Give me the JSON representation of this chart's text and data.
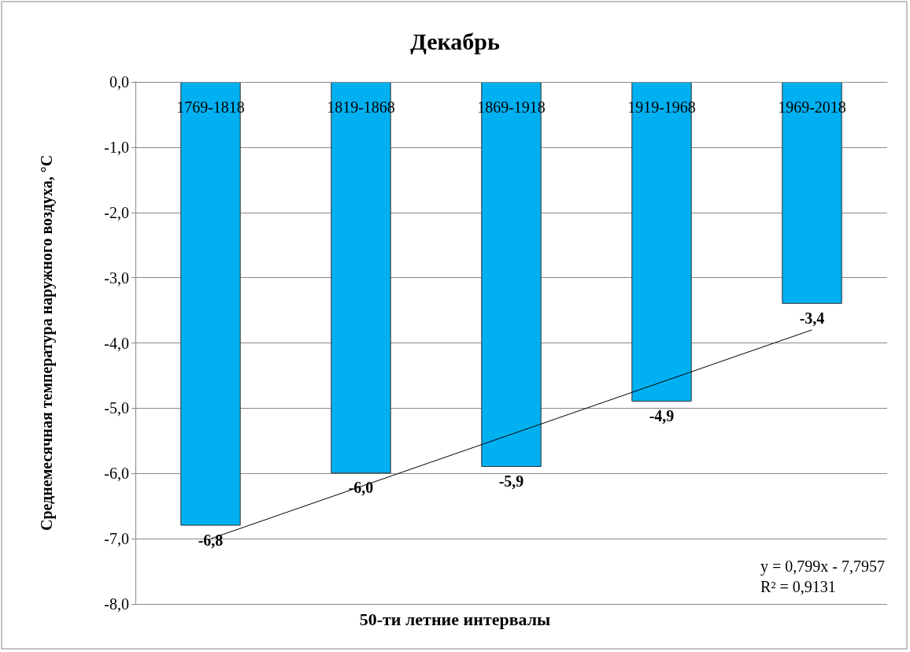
{
  "chart_data": {
    "type": "bar",
    "title": "Декабрь",
    "xlabel": "50-ти летние интервалы",
    "ylabel": "Среднемесячная температура наружного воздуха, °С",
    "categories": [
      "1769-1818",
      "1819-1868",
      "1869-1918",
      "1919-1968",
      "1969-2018"
    ],
    "series": [
      {
        "color": "#00b0f0",
        "values": [
          -6.8,
          -6.0,
          -5.9,
          -4.9,
          -3.4
        ],
        "value_labels": [
          "-6,8",
          "-6,0",
          "-5,9",
          "-4,9",
          "-3,4"
        ]
      },
      {
        "type": "line",
        "color": "#000000",
        "x": [
          "1769-1818",
          "1969-2018"
        ],
        "values": [
          -7.0,
          -3.8
        ]
      }
    ],
    "ylim": [
      -8,
      0
    ],
    "yticks": [
      {
        "value": -8,
        "label": "-8,0"
      },
      {
        "value": -7,
        "label": "-7,0"
      },
      {
        "value": -6,
        "label": "-6,0"
      },
      {
        "value": -5,
        "label": "-5,0"
      },
      {
        "value": -4,
        "label": "-4,0"
      },
      {
        "value": -3,
        "label": "-3,0"
      },
      {
        "value": -2,
        "label": "-2,0"
      },
      {
        "value": -1,
        "label": "-1,0"
      },
      {
        "value": 0,
        "label": "0,0"
      }
    ],
    "grid": "y",
    "annotations": [
      "y = 0,799x - 7,7957",
      "R² = 0,9131"
    ]
  }
}
